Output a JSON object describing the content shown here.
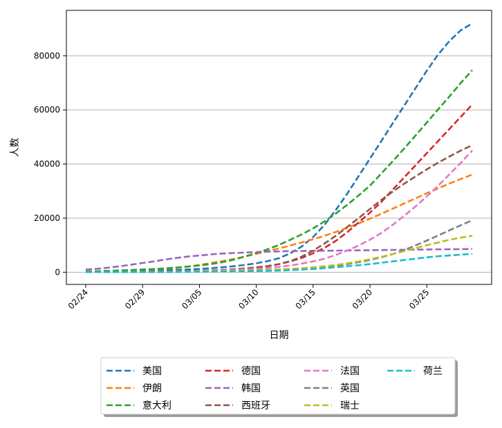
{
  "chart_data": {
    "type": "line",
    "title": "",
    "xlabel": "日期",
    "ylabel": "人数",
    "x": [
      "02/24",
      "02/25",
      "02/26",
      "02/27",
      "02/28",
      "02/29",
      "03/01",
      "03/02",
      "03/03",
      "03/04",
      "03/05",
      "03/06",
      "03/07",
      "03/08",
      "03/09",
      "03/10",
      "03/11",
      "03/12",
      "03/13",
      "03/14",
      "03/15",
      "03/16",
      "03/17",
      "03/18",
      "03/19",
      "03/20",
      "03/21",
      "03/22",
      "03/23",
      "03/24",
      "03/25",
      "03/26",
      "03/27",
      "03/28",
      "03/29"
    ],
    "xticks": [
      "02/24",
      "02/29",
      "03/05",
      "03/10",
      "03/15",
      "03/20",
      "03/25"
    ],
    "ylim": [
      -4500,
      96800
    ],
    "yticks": [
      0,
      20000,
      40000,
      60000,
      80000
    ],
    "grid": "y",
    "line_style": "dashed",
    "legend_placement": "below",
    "series": [
      {
        "name": "美国",
        "color": "#1f77b4",
        "values": [
          200,
          240,
          290,
          350,
          420,
          500,
          600,
          720,
          860,
          1040,
          1250,
          1500,
          1820,
          2200,
          2700,
          3300,
          4100,
          5200,
          7000,
          9500,
          13000,
          17500,
          23000,
          29000,
          35500,
          42000,
          48500,
          55000,
          61500,
          68000,
          74500,
          80500,
          85500,
          89500,
          92000
        ]
      },
      {
        "name": "伊朗",
        "color": "#ff7f0e",
        "values": [
          300,
          400,
          520,
          650,
          800,
          950,
          1100,
          1300,
          1600,
          2100,
          2700,
          3400,
          4100,
          4900,
          5800,
          6800,
          7800,
          8800,
          9900,
          11000,
          12200,
          13500,
          14900,
          16400,
          18000,
          19800,
          21600,
          23500,
          25400,
          27300,
          29200,
          31000,
          32800,
          34500,
          36100
        ]
      },
      {
        "name": "意大利",
        "color": "#2ca02c",
        "values": [
          300,
          400,
          500,
          650,
          800,
          1000,
          1200,
          1450,
          1750,
          2100,
          2500,
          3000,
          3700,
          4600,
          5800,
          7100,
          8500,
          10100,
          12000,
          14000,
          16200,
          18800,
          21700,
          24900,
          28400,
          32000,
          36500,
          41000,
          45700,
          50500,
          55300,
          60200,
          65000,
          70000,
          74700
        ]
      },
      {
        "name": "德国",
        "color": "#d62728",
        "values": [
          100,
          110,
          120,
          130,
          150,
          170,
          200,
          250,
          310,
          390,
          500,
          650,
          850,
          1100,
          1400,
          1800,
          2300,
          3000,
          4000,
          5300,
          7000,
          9000,
          11600,
          14800,
          18400,
          22000,
          26000,
          30500,
          35000,
          39500,
          44000,
          48500,
          53000,
          57500,
          62000
        ]
      },
      {
        "name": "韩国",
        "color": "#9467bd",
        "values": [
          1000,
          1300,
          1700,
          2200,
          2800,
          3400,
          4000,
          4700,
          5300,
          5800,
          6200,
          6600,
          6900,
          7100,
          7300,
          7450,
          7600,
          7700,
          7800,
          7850,
          7900,
          7950,
          8000,
          8050,
          8100,
          8150,
          8200,
          8250,
          8300,
          8350,
          8400,
          8450,
          8500,
          8550,
          8600
        ]
      },
      {
        "name": "西班牙",
        "color": "#8c564b",
        "values": [
          100,
          110,
          120,
          130,
          150,
          170,
          200,
          250,
          310,
          390,
          500,
          650,
          850,
          1100,
          1400,
          1800,
          2300,
          3000,
          4100,
          5800,
          8000,
          10600,
          13500,
          16700,
          20000,
          23400,
          26700,
          29800,
          32700,
          35400,
          38000,
          40500,
          42800,
          45000,
          47000
        ]
      },
      {
        "name": "法国",
        "color": "#e377c2",
        "values": [
          100,
          110,
          120,
          130,
          150,
          170,
          200,
          250,
          300,
          370,
          450,
          550,
          680,
          840,
          1050,
          1300,
          1600,
          2000,
          2500,
          3200,
          4000,
          5000,
          6400,
          8000,
          9900,
          12000,
          14500,
          17500,
          20800,
          24300,
          28000,
          32000,
          36200,
          40500,
          45000
        ]
      },
      {
        "name": "英国",
        "color": "#7f7f7f",
        "values": [
          50,
          55,
          60,
          70,
          80,
          90,
          100,
          120,
          140,
          160,
          200,
          250,
          300,
          360,
          430,
          500,
          600,
          750,
          950,
          1200,
          1500,
          1900,
          2400,
          3000,
          3700,
          4500,
          5500,
          6700,
          8200,
          9900,
          11700,
          13600,
          15500,
          17400,
          19200
        ]
      },
      {
        "name": "瑞士",
        "color": "#bcbd22",
        "values": [
          50,
          60,
          70,
          80,
          100,
          120,
          150,
          180,
          220,
          270,
          330,
          400,
          480,
          570,
          670,
          780,
          900,
          1050,
          1250,
          1500,
          1800,
          2200,
          2700,
          3300,
          4000,
          4800,
          5700,
          6700,
          7800,
          8900,
          10000,
          11000,
          12000,
          12800,
          13500
        ]
      },
      {
        "name": "荷兰",
        "color": "#17becf",
        "values": [
          50,
          55,
          60,
          70,
          80,
          90,
          100,
          110,
          130,
          150,
          180,
          220,
          260,
          300,
          360,
          420,
          500,
          600,
          750,
          950,
          1200,
          1500,
          1850,
          2200,
          2600,
          3000,
          3500,
          4000,
          4500,
          5000,
          5500,
          5900,
          6200,
          6500,
          6800
        ]
      }
    ]
  }
}
